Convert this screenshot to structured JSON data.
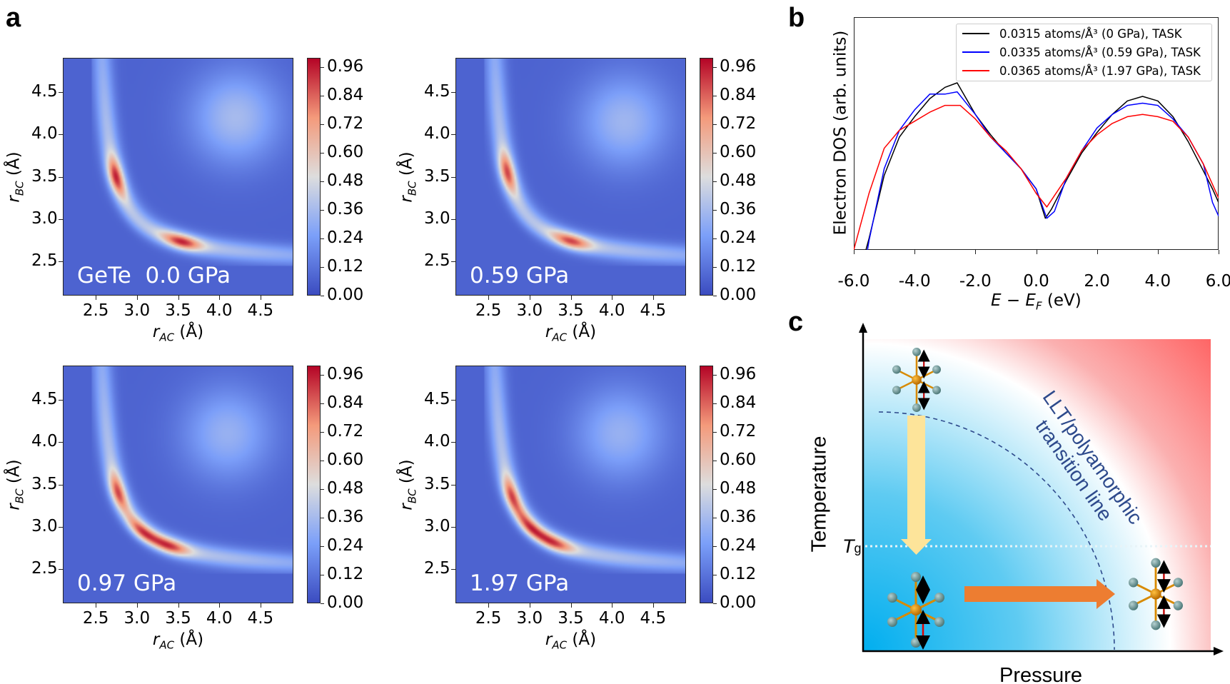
{
  "panel_labels": {
    "a": "a",
    "b": "b",
    "c": "c"
  },
  "chart_data": [
    {
      "type": "heatmap",
      "panel": "a",
      "label": "GeTe  0.0 GPa",
      "xlabel": {
        "var": "r",
        "sub": "AC",
        "unit": " (Å)"
      },
      "ylabel": {
        "var": "r",
        "sub": "BC",
        "unit": " (Å)"
      },
      "xlim": [
        2.1,
        4.9
      ],
      "ylim": [
        2.1,
        4.9
      ],
      "xticks": [
        "2.5",
        "3.0",
        "3.5",
        "4.0",
        "4.5"
      ],
      "yticks": [
        "2.5",
        "3.0",
        "3.5",
        "4.0",
        "4.5"
      ],
      "colorbar": {
        "range": [
          0,
          1.0
        ],
        "colormap": "coolwarm",
        "ticks": [
          "0.00",
          "0.12",
          "0.24",
          "0.36",
          "0.48",
          "0.60",
          "0.72",
          "0.84",
          "0.96"
        ]
      },
      "peaks": [
        {
          "x": 2.75,
          "y": 3.5,
          "value": 0.96
        },
        {
          "x": 3.55,
          "y": 2.75,
          "value": 0.96
        }
      ],
      "secondary_max": {
        "x": 4.2,
        "y": 4.2,
        "value": 0.36
      }
    },
    {
      "type": "heatmap",
      "panel": "a",
      "label": "0.59 GPa",
      "xlabel": {
        "var": "r",
        "sub": "AC",
        "unit": " (Å)"
      },
      "ylabel": {
        "var": "r",
        "sub": "BC",
        "unit": " (Å)"
      },
      "xlim": [
        2.1,
        4.9
      ],
      "ylim": [
        2.1,
        4.9
      ],
      "xticks": [
        "2.5",
        "3.0",
        "3.5",
        "4.0",
        "4.5"
      ],
      "yticks": [
        "2.5",
        "3.0",
        "3.5",
        "4.0",
        "4.5"
      ],
      "colorbar": {
        "range": [
          0,
          1.0
        ],
        "colormap": "coolwarm",
        "ticks": [
          "0.00",
          "0.12",
          "0.24",
          "0.36",
          "0.48",
          "0.60",
          "0.72",
          "0.84",
          "0.96"
        ]
      },
      "peaks": [
        {
          "x": 2.72,
          "y": 3.55,
          "value": 0.9
        },
        {
          "x": 3.5,
          "y": 2.73,
          "value": 0.9
        }
      ],
      "secondary_max": {
        "x": 4.15,
        "y": 4.15,
        "value": 0.34
      }
    },
    {
      "type": "heatmap",
      "panel": "a",
      "label": "0.97 GPa",
      "xlabel": {
        "var": "r",
        "sub": "AC",
        "unit": " (Å)"
      },
      "ylabel": {
        "var": "r",
        "sub": "BC",
        "unit": " (Å)"
      },
      "xlim": [
        2.1,
        4.9
      ],
      "ylim": [
        2.1,
        4.9
      ],
      "xticks": [
        "2.5",
        "3.0",
        "3.5",
        "4.0",
        "4.5"
      ],
      "yticks": [
        "2.5",
        "3.0",
        "3.5",
        "4.0",
        "4.5"
      ],
      "colorbar": {
        "range": [
          0,
          1.0
        ],
        "colormap": "coolwarm",
        "ticks": [
          "0.00",
          "0.12",
          "0.24",
          "0.36",
          "0.48",
          "0.60",
          "0.72",
          "0.84",
          "0.96"
        ]
      },
      "peaks": [
        {
          "x": 2.75,
          "y": 3.4,
          "value": 0.9
        },
        {
          "x": 3.05,
          "y": 2.92,
          "value": 0.9
        },
        {
          "x": 3.4,
          "y": 2.77,
          "value": 0.9
        }
      ],
      "secondary_max": {
        "x": 4.1,
        "y": 4.1,
        "value": 0.32
      }
    },
    {
      "type": "heatmap",
      "panel": "a",
      "label": "1.97 GPa",
      "xlabel": {
        "var": "r",
        "sub": "AC",
        "unit": " (Å)"
      },
      "ylabel": {
        "var": "r",
        "sub": "BC",
        "unit": " (Å)"
      },
      "xlim": [
        2.1,
        4.9
      ],
      "ylim": [
        2.1,
        4.9
      ],
      "xticks": [
        "2.5",
        "3.0",
        "3.5",
        "4.0",
        "4.5"
      ],
      "yticks": [
        "2.5",
        "3.0",
        "3.5",
        "4.0",
        "4.5"
      ],
      "colorbar": {
        "range": [
          0,
          1.0
        ],
        "colormap": "coolwarm",
        "ticks": [
          "0.00",
          "0.12",
          "0.24",
          "0.36",
          "0.48",
          "0.60",
          "0.72",
          "0.84",
          "0.96"
        ]
      },
      "peaks": [
        {
          "x": 2.75,
          "y": 3.35,
          "value": 0.9
        },
        {
          "x": 2.98,
          "y": 2.97,
          "value": 0.9
        },
        {
          "x": 3.3,
          "y": 2.8,
          "value": 0.88
        }
      ],
      "secondary_max": {
        "x": 4.1,
        "y": 4.1,
        "value": 0.32
      }
    },
    {
      "type": "line",
      "panel": "b",
      "xlabel": {
        "var": "E − E",
        "sub": "F",
        "unit": " (eV)"
      },
      "ylabel": "Electron DOS (arb. units)",
      "xlim": [
        -6.0,
        6.0
      ],
      "ylim": [
        0,
        1
      ],
      "xticks": [
        "-6.0",
        "-4.0",
        "-2.0",
        "0.0",
        "2.0",
        "4.0",
        "6.0"
      ],
      "legend_position": "top-right",
      "series": [
        {
          "name": "0.0315 atoms/Å³ (0 GPa), TASK",
          "color": "#000000",
          "x": [
            -5.6,
            -5.5,
            -5.0,
            -4.5,
            -4.0,
            -3.5,
            -3.0,
            -2.6,
            -2.0,
            -1.5,
            -1.0,
            -0.5,
            0.0,
            0.3,
            0.5,
            1.0,
            1.5,
            2.0,
            2.5,
            3.0,
            3.5,
            4.0,
            4.5,
            5.0,
            5.5,
            5.8,
            6.0
          ],
          "y": [
            0.0,
            0.05,
            0.33,
            0.5,
            0.59,
            0.67,
            0.72,
            0.74,
            0.6,
            0.51,
            0.43,
            0.36,
            0.27,
            0.14,
            0.18,
            0.31,
            0.43,
            0.52,
            0.6,
            0.66,
            0.68,
            0.66,
            0.59,
            0.48,
            0.35,
            0.27,
            0.21
          ]
        },
        {
          "name": "0.0335 atoms/Å³ (0.59 GPa), TASK",
          "color": "#0000ff",
          "x": [
            -5.55,
            -5.5,
            -5.0,
            -4.5,
            -4.0,
            -3.5,
            -3.0,
            -2.6,
            -2.0,
            -1.5,
            -1.0,
            -0.5,
            0.0,
            0.35,
            0.6,
            1.0,
            1.5,
            2.0,
            2.5,
            3.0,
            3.5,
            4.0,
            4.5,
            5.0,
            5.5,
            5.8,
            6.0
          ],
          "y": [
            0.0,
            0.04,
            0.36,
            0.53,
            0.62,
            0.69,
            0.69,
            0.7,
            0.6,
            0.5,
            0.43,
            0.36,
            0.27,
            0.14,
            0.17,
            0.32,
            0.44,
            0.54,
            0.6,
            0.64,
            0.65,
            0.64,
            0.58,
            0.5,
            0.38,
            0.21,
            0.15
          ]
        },
        {
          "name": "0.0365 atoms/Å³ (1.97 GPa), TASK",
          "color": "#ff0000",
          "x": [
            -6.0,
            -5.8,
            -5.5,
            -5.0,
            -4.5,
            -4.0,
            -3.5,
            -3.0,
            -2.5,
            -2.0,
            -1.5,
            -1.0,
            -0.5,
            0.0,
            0.35,
            0.6,
            1.0,
            1.5,
            2.0,
            2.5,
            3.0,
            3.5,
            4.0,
            4.5,
            5.0,
            5.5,
            6.0
          ],
          "y": [
            0.0,
            0.1,
            0.25,
            0.45,
            0.53,
            0.57,
            0.61,
            0.64,
            0.64,
            0.58,
            0.5,
            0.44,
            0.36,
            0.25,
            0.19,
            0.24,
            0.32,
            0.44,
            0.51,
            0.56,
            0.59,
            0.6,
            0.59,
            0.57,
            0.5,
            0.38,
            0.23
          ]
        }
      ]
    }
  ],
  "diagram_c": {
    "xlabel": "Pressure",
    "ylabel": "Temperature",
    "tg_label": {
      "var": "T",
      "sub": "g"
    },
    "transition_label_line1": "LLT/polyamorphic",
    "transition_label_line2": "transition line",
    "colors": {
      "low": "#00aeef",
      "high": "#ff0000",
      "cooling_arrow": "#fde49a",
      "pressure_arrow": "#ed7d31",
      "line": "#2e4a8c"
    }
  }
}
